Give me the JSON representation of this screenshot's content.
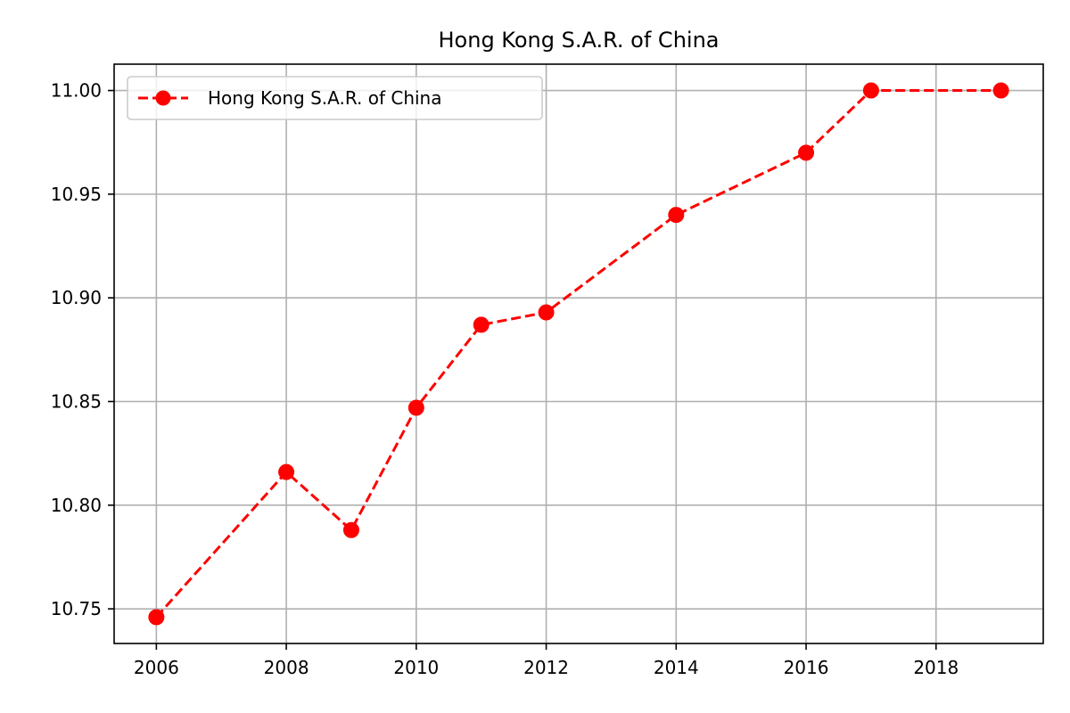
{
  "chart_data": {
    "type": "line",
    "title": "Hong Kong S.A.R. of China",
    "xlabel": "",
    "ylabel": "",
    "x": [
      2006,
      2008,
      2009,
      2010,
      2011,
      2012,
      2014,
      2016,
      2017,
      2019
    ],
    "series": [
      {
        "name": "Hong Kong S.A.R. of China",
        "values": [
          10.746,
          10.816,
          10.788,
          10.847,
          10.887,
          10.893,
          10.94,
          10.97,
          11.0,
          11.0
        ],
        "color": "#ff0000",
        "line_style": "dashed",
        "marker": "circle"
      }
    ],
    "xticks": [
      "2006",
      "2008",
      "2010",
      "2012",
      "2014",
      "2016",
      "2018"
    ],
    "yticks": [
      "10.75",
      "10.80",
      "10.85",
      "10.90",
      "10.95",
      "11.00"
    ],
    "xlim": [
      2005.35,
      2019.65
    ],
    "ylim": [
      10.7333,
      11.0127
    ],
    "grid": true,
    "legend_position": "upper-left"
  }
}
